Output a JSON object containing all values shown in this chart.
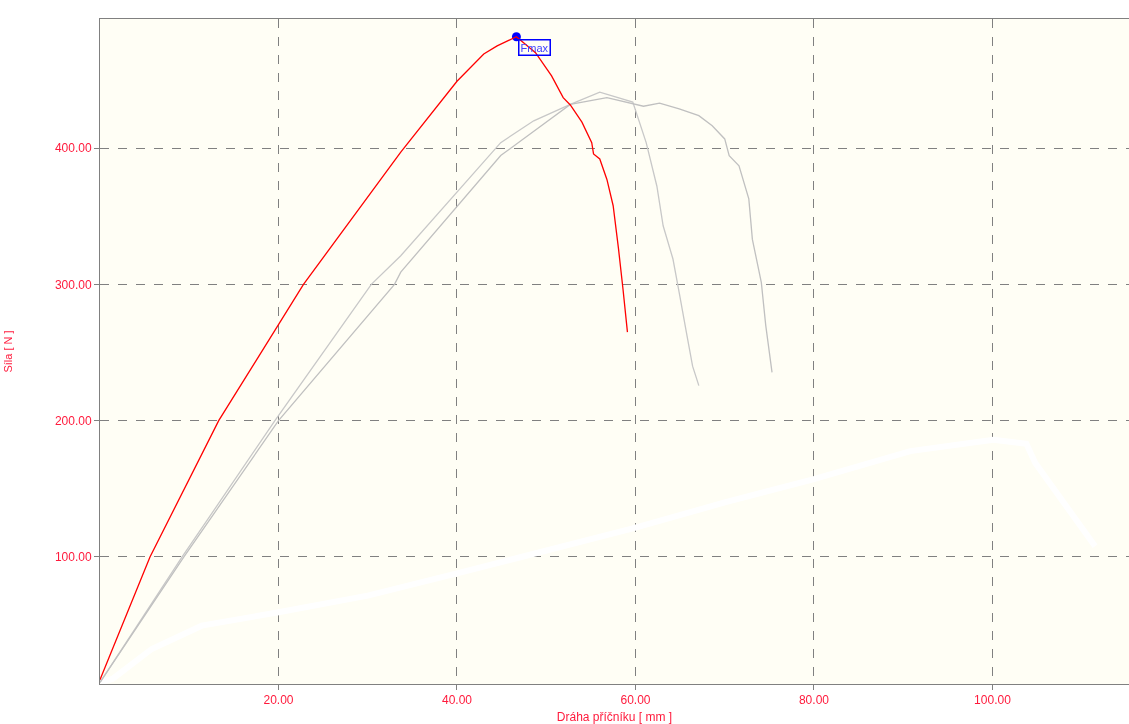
{
  "chart_data": {
    "type": "line",
    "xlabel": "Dráha příčníku [ mm ]",
    "ylabel": "Síla [ N ]",
    "xlim": [
      0,
      115.3
    ],
    "ylim": [
      6.8,
      494.7
    ],
    "xticks": [
      {
        "value": 20,
        "label": "20.00"
      },
      {
        "value": 40,
        "label": "40.00"
      },
      {
        "value": 60,
        "label": "60.00"
      },
      {
        "value": 80,
        "label": "80.00"
      },
      {
        "value": 100,
        "label": "100.00"
      }
    ],
    "yticks": [
      {
        "value": 100,
        "label": "100.00"
      },
      {
        "value": 200,
        "label": "200.00"
      },
      {
        "value": 300,
        "label": "300.00"
      },
      {
        "value": 400,
        "label": "400.00"
      }
    ],
    "grid": true,
    "marker": "none",
    "line_style": "solid",
    "series": [
      {
        "color": "#ffffff",
        "x": [
          0,
          1.4,
          5.8,
          11.4,
          20,
          30,
          40,
          47.2,
          59.7,
          70,
          79.9,
          90.8,
          100.1,
          103.8,
          104.8,
          111.5
        ],
        "values": [
          8,
          10.5,
          32.5,
          49.6,
          59.4,
          71.6,
          88,
          100,
          121,
          140,
          157,
          177.7,
          186,
          183,
          169,
          107.8
        ]
      },
      {
        "color": "#c8c8c8",
        "x": [
          0,
          9.2,
          19.6,
          30.4,
          33.7,
          44.9,
          48.6,
          52.7,
          56.0,
          59.7,
          61.2,
          62.4,
          63.1,
          64.2,
          64.9,
          65.7,
          66.4,
          67.1
        ],
        "values": [
          8,
          100,
          200,
          300,
          321,
          404,
          420,
          432,
          441,
          433.7,
          404,
          372,
          343,
          318.6,
          294,
          265,
          240,
          225.7
        ]
      },
      {
        "color": "#c0c0c0",
        "x": [
          0,
          9.4,
          20.0,
          33.0,
          33.7,
          44.9,
          52.7,
          56.8,
          60.9,
          62.7,
          64.9,
          67.1,
          68.6,
          70.0,
          70.5,
          71.6,
          72.7,
          73.1,
          74.1,
          74.6,
          75.3
        ],
        "values": [
          8,
          100,
          200,
          300,
          309,
          394.5,
          432,
          437,
          430.7,
          433,
          428.7,
          423.8,
          416.4,
          406.7,
          394.4,
          387,
          362.7,
          333,
          301.5,
          269.7,
          235.5
        ]
      },
      {
        "type": "scatter",
        "marker": "circle",
        "color": "#0000ff",
        "x": [
          46.66
        ],
        "values": [
          481.7
        ]
      },
      {
        "color": "#ff0000",
        "x": [
          0,
          1.4,
          5.6,
          13.3,
          22.8,
          33.7,
          40.0,
          43.0,
          44.5,
          46.66,
          48.8,
          50.6,
          51.9,
          52.7,
          54.0,
          55.1,
          55.3,
          56.0,
          56.8,
          57.5,
          58.1,
          58.6,
          59.1
        ],
        "values": [
          10,
          32.5,
          100,
          200,
          300,
          397,
          449,
          469,
          475,
          481.7,
          470,
          453,
          437,
          431.6,
          419,
          404,
          395.7,
          392,
          377,
          357.7,
          326,
          296.6,
          265
        ]
      }
    ],
    "annotations": [
      {
        "text": "Fmax",
        "x": 46.66,
        "y": 481.7
      }
    ]
  }
}
